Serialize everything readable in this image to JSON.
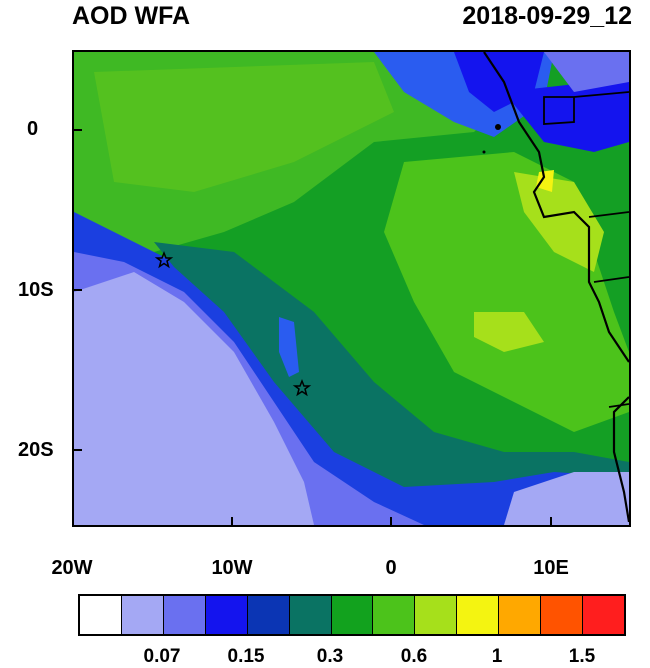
{
  "header": {
    "title": "AOD WFA",
    "datetime": "2018-09-29_12"
  },
  "map": {
    "region": "Southeast Atlantic / West Africa",
    "lon_range": [
      -20,
      15
    ],
    "lat_range": [
      -25,
      5
    ],
    "x_ticks": [
      "20W",
      "10W",
      "0",
      "10E"
    ],
    "y_ticks": [
      "0",
      "10S",
      "20S"
    ],
    "markers": [
      {
        "name": "star-marker-1",
        "shape": "star"
      },
      {
        "name": "star-marker-2",
        "shape": "star"
      }
    ]
  },
  "colorbar": {
    "colors": [
      "#ffffff",
      "#a4a8f4",
      "#6a70f0",
      "#1414ee",
      "#0b35b4",
      "#0a7363",
      "#12a21e",
      "#4cc31b",
      "#a6e01b",
      "#f4f411",
      "#ffa800",
      "#ff5300",
      "#ff1e1e"
    ],
    "labels": [
      "0.07",
      "0.15",
      "0.3",
      "0.6",
      "1",
      "1.5"
    ]
  }
}
